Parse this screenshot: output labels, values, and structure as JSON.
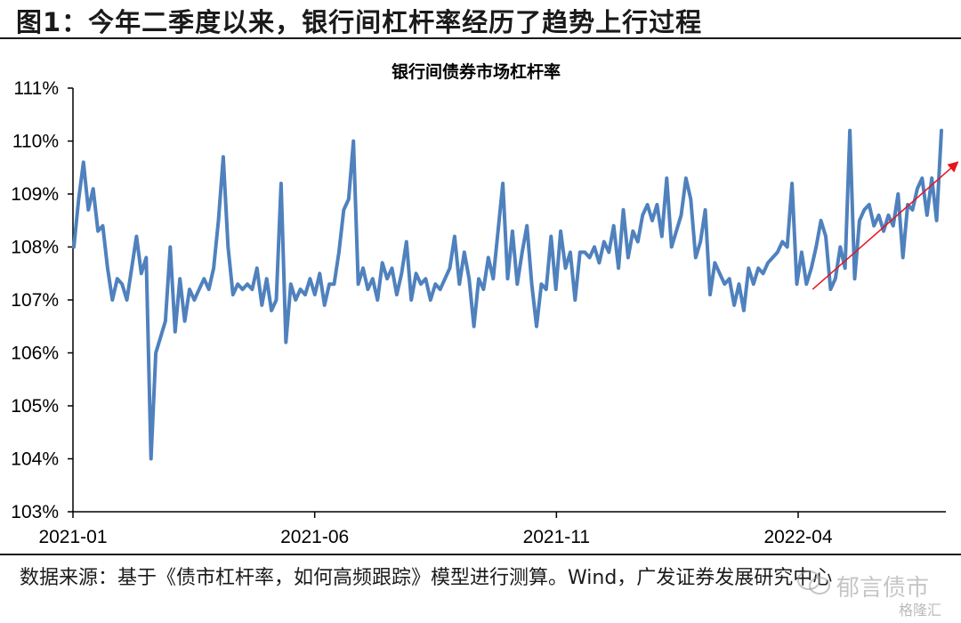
{
  "figure": {
    "title": "图1：今年二季度以来，银行间杠杆率经历了趋势上行过程",
    "source": "数据来源：基于《债市杠杆率，如何高频跟踪》模型进行测算。Wind，广发证券发展研究中心",
    "watermark_account": "郁言债市",
    "watermark_brand": "格隆汇"
  },
  "colors": {
    "line": "#4f81bd",
    "arrow": "#e8131b"
  },
  "chart_data": {
    "type": "line",
    "title": "银行间债券市场杠杆率",
    "xlabel": "",
    "ylabel": "",
    "x_range": [
      "2021-01",
      "2022-07"
    ],
    "x_ticks": [
      "2021-01",
      "2021-06",
      "2021-11",
      "2022-04"
    ],
    "ylim": [
      103,
      111
    ],
    "y_ticks": [
      "103%",
      "104%",
      "105%",
      "106%",
      "107%",
      "108%",
      "109%",
      "110%",
      "111%"
    ],
    "grid": false,
    "legend": "none",
    "series": [
      {
        "values": [
          108.0,
          108.9,
          109.6,
          108.7,
          109.1,
          108.3,
          108.4,
          107.6,
          107.0,
          107.4,
          107.3,
          107.0,
          107.6,
          108.2,
          107.5,
          107.8,
          104.0,
          106.0,
          106.3,
          106.6,
          108.0,
          106.4,
          107.4,
          106.6,
          107.2,
          107.0,
          107.2,
          107.4,
          107.2,
          107.6,
          108.5,
          109.7,
          108.0,
          107.1,
          107.3,
          107.2,
          107.3,
          107.2,
          107.6,
          106.9,
          107.4,
          106.8,
          107.0,
          109.2,
          106.2,
          107.3,
          107.0,
          107.2,
          107.1,
          107.4,
          107.1,
          107.5,
          106.9,
          107.3,
          107.3,
          107.9,
          108.7,
          108.9,
          110.0,
          107.3,
          107.6,
          107.2,
          107.4,
          107.0,
          107.7,
          107.4,
          107.6,
          107.1,
          107.5,
          108.1,
          107.0,
          107.5,
          107.3,
          107.4,
          107.0,
          107.3,
          107.2,
          107.4,
          107.6,
          108.2,
          107.3,
          107.9,
          107.4,
          106.5,
          107.4,
          107.2,
          107.8,
          107.4,
          108.3,
          109.2,
          107.4,
          108.3,
          107.3,
          107.9,
          108.4,
          107.3,
          106.5,
          107.3,
          107.2,
          108.2,
          107.2,
          108.3,
          107.6,
          107.9,
          107.0,
          107.9,
          107.9,
          107.8,
          108.0,
          107.7,
          108.1,
          107.9,
          108.4,
          107.6,
          108.7,
          107.8,
          108.3,
          108.1,
          108.6,
          108.8,
          108.5,
          108.8,
          108.2,
          109.3,
          108.0,
          108.3,
          108.6,
          109.3,
          108.9,
          107.8,
          108.1,
          108.7,
          107.1,
          107.7,
          107.5,
          107.3,
          107.4,
          106.9,
          107.3,
          106.8,
          107.6,
          107.3,
          107.6,
          107.5,
          107.7,
          107.8,
          107.9,
          108.1,
          108.0,
          109.2,
          107.3,
          107.9,
          107.3,
          107.6,
          108.0,
          108.5,
          108.2,
          107.2,
          107.4,
          108.0,
          107.6,
          110.2,
          107.4,
          108.5,
          108.7,
          108.8,
          108.4,
          108.6,
          108.3,
          108.6,
          108.4,
          109.0,
          107.8,
          108.8,
          108.7,
          109.1,
          109.3,
          108.6,
          109.3,
          108.5,
          110.2
        ]
      }
    ],
    "annotations": [
      {
        "type": "arrow",
        "from": [
          "2022-04-10",
          107.2
        ],
        "to": [
          "2022-07-10",
          109.6
        ],
        "meaning": "upward trend"
      }
    ]
  }
}
